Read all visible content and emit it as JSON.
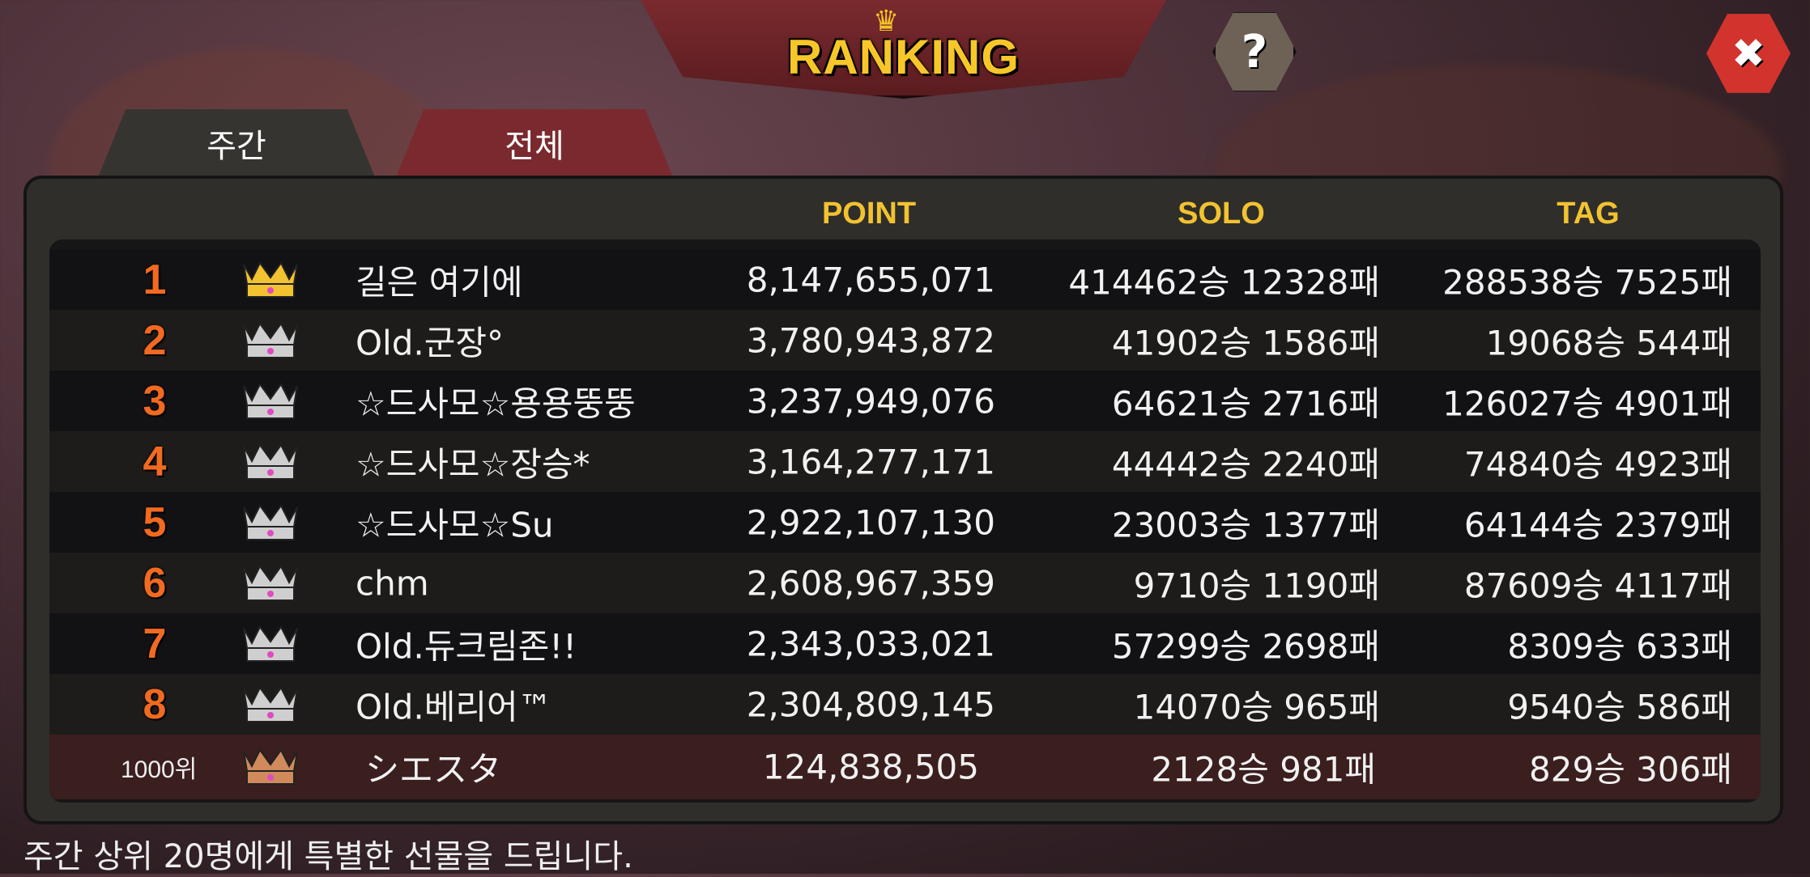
{
  "header": {
    "title": "RANKING",
    "help_label": "?",
    "close_label": "✖"
  },
  "tabs": [
    {
      "label": "주간",
      "active": true
    },
    {
      "label": "전체",
      "active": false
    }
  ],
  "columns": {
    "point": "POINT",
    "solo": "SOLO",
    "tag": "TAG"
  },
  "rows": [
    {
      "rank": "1",
      "crown": "gold",
      "name": "길은 여기에",
      "point": "8,147,655,071",
      "solo": "414462승 12328패",
      "tag": "288538승 7525패"
    },
    {
      "rank": "2",
      "crown": "silver",
      "name": "Old.군장°",
      "point": "3,780,943,872",
      "solo": "41902승 1586패",
      "tag": "19068승 544패"
    },
    {
      "rank": "3",
      "crown": "silver",
      "name": "☆드사모☆용용뚱뚱",
      "point": "3,237,949,076",
      "solo": "64621승 2716패",
      "tag": "126027승 4901패"
    },
    {
      "rank": "4",
      "crown": "silver",
      "name": "☆드사모☆장승*",
      "point": "3,164,277,171",
      "solo": "44442승 2240패",
      "tag": "74840승 4923패"
    },
    {
      "rank": "5",
      "crown": "silver",
      "name": "☆드사모☆Su",
      "point": "2,922,107,130",
      "solo": "23003승 1377패",
      "tag": "64144승 2379패"
    },
    {
      "rank": "6",
      "crown": "silver",
      "name": "chm",
      "point": "2,608,967,359",
      "solo": "9710승 1190패",
      "tag": "87609승 4117패"
    },
    {
      "rank": "7",
      "crown": "silver",
      "name": "Old.듀크림존!!",
      "point": "2,343,033,021",
      "solo": "57299승 2698패",
      "tag": "8309승 633패"
    },
    {
      "rank": "8",
      "crown": "silver",
      "name": "Old.베리어™",
      "point": "2,304,809,145",
      "solo": "14070승 965패",
      "tag": "9540승 586패"
    }
  ],
  "my_row": {
    "rank": "1000위",
    "crown": "bronze",
    "name": "シエスタ",
    "point": "124,838,505",
    "solo": "2128승 981패",
    "tag": "829승 306패"
  },
  "footer": "주간 상위 20명에게 특별한 선물을 드립니다.",
  "colors": {
    "gold": "#f2c230",
    "silver": "#cfcfcf",
    "bronze": "#d08a5c",
    "rank": "#f26a20",
    "tab_active": "#363431",
    "tab_inactive": "#7a2a2e"
  }
}
